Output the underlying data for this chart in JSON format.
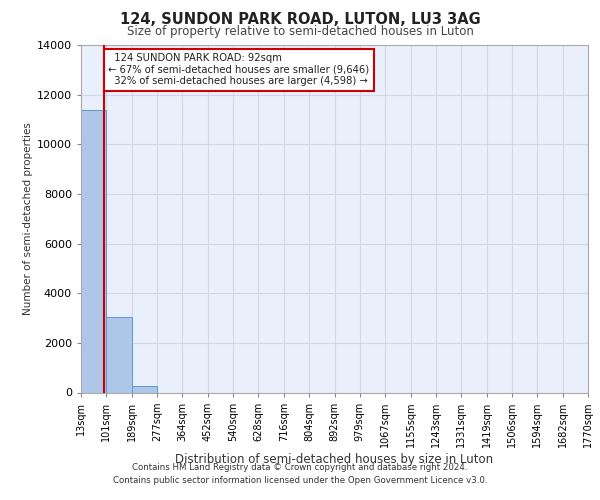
{
  "title1": "124, SUNDON PARK ROAD, LUTON, LU3 3AG",
  "title2": "Size of property relative to semi-detached houses in Luton",
  "xlabel": "Distribution of semi-detached houses by size in Luton",
  "ylabel": "Number of semi-detached properties",
  "bin_edges": [
    13,
    101,
    189,
    277,
    364,
    452,
    540,
    628,
    716,
    804,
    892,
    979,
    1067,
    1155,
    1243,
    1331,
    1419,
    1506,
    1594,
    1682,
    1770
  ],
  "bar_heights": [
    11400,
    3050,
    250,
    0,
    0,
    0,
    0,
    0,
    0,
    0,
    0,
    0,
    0,
    0,
    0,
    0,
    0,
    0,
    0,
    0
  ],
  "bar_color": "#aec6e8",
  "bar_edge_color": "#5b9bd5",
  "property_size": 92,
  "property_label": "124 SUNDON PARK ROAD: 92sqm",
  "smaller_pct": "67%",
  "smaller_n": "9,646",
  "larger_pct": "32%",
  "larger_n": "4,598",
  "red_line_color": "#cc0000",
  "annotation_box_color": "#cc0000",
  "ylim": [
    0,
    14000
  ],
  "yticks": [
    0,
    2000,
    4000,
    6000,
    8000,
    10000,
    12000,
    14000
  ],
  "grid_color": "#d0d8e8",
  "bg_color": "#eaf0fb",
  "footer1": "Contains HM Land Registry data © Crown copyright and database right 2024.",
  "footer2": "Contains public sector information licensed under the Open Government Licence v3.0."
}
